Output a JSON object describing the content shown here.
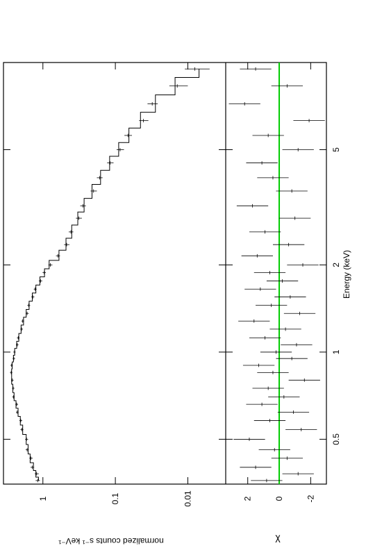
{
  "chart_data": [
    {
      "type": "errorbar",
      "ylabel": "normalized counts s⁻¹ keV⁻¹",
      "xlog": true,
      "ylog": true,
      "xlim": [
        0.35,
        10
      ],
      "xticks": [
        0.5,
        1,
        2,
        5
      ],
      "ylim": [
        0.003,
        3.5
      ],
      "yticks": [
        1,
        0.1,
        0.01
      ],
      "color": "#000000",
      "model_color": "#000000",
      "x": [
        0.36,
        0.38,
        0.4,
        0.43,
        0.46,
        0.5,
        0.54,
        0.58,
        0.62,
        0.66,
        0.7,
        0.75,
        0.8,
        0.85,
        0.9,
        0.95,
        1.0,
        1.06,
        1.12,
        1.2,
        1.28,
        1.36,
        1.45,
        1.55,
        1.65,
        1.76,
        1.88,
        2.0,
        2.15,
        2.35,
        2.6,
        2.9,
        3.2,
        3.6,
        4.0,
        4.5,
        5.0,
        5.6,
        6.3,
        7.2,
        8.3,
        9.5
      ],
      "values": [
        1.18,
        1.22,
        1.4,
        1.46,
        1.65,
        1.68,
        1.95,
        2.02,
        2.26,
        2.3,
        2.55,
        2.57,
        2.64,
        2.74,
        2.7,
        2.52,
        2.47,
        2.26,
        2.19,
        1.97,
        1.9,
        1.65,
        1.57,
        1.38,
        1.28,
        1.08,
        0.96,
        0.79,
        0.62,
        0.47,
        0.41,
        0.32,
        0.28,
        0.2,
        0.165,
        0.118,
        0.086,
        0.067,
        0.041,
        0.031,
        0.014,
        0.008
      ],
      "errors": [
        0.08,
        0.08,
        0.08,
        0.08,
        0.08,
        0.08,
        0.09,
        0.09,
        0.09,
        0.1,
        0.1,
        0.1,
        0.1,
        0.1,
        0.1,
        0.1,
        0.09,
        0.09,
        0.09,
        0.08,
        0.08,
        0.08,
        0.07,
        0.07,
        0.06,
        0.06,
        0.05,
        0.05,
        0.04,
        0.04,
        0.03,
        0.03,
        0.025,
        0.02,
        0.015,
        0.012,
        0.01,
        0.008,
        0.006,
        0.005,
        0.004,
        0.003
      ],
      "model": [
        1.15,
        1.25,
        1.35,
        1.5,
        1.6,
        1.7,
        1.9,
        2.05,
        2.2,
        2.35,
        2.5,
        2.6,
        2.7,
        2.7,
        2.65,
        2.55,
        2.45,
        2.3,
        2.15,
        2.0,
        1.85,
        1.7,
        1.55,
        1.4,
        1.25,
        1.1,
        0.95,
        0.82,
        0.6,
        0.48,
        0.4,
        0.33,
        0.27,
        0.21,
        0.16,
        0.12,
        0.09,
        0.065,
        0.045,
        0.028,
        0.015,
        0.007
      ]
    },
    {
      "type": "residual",
      "ylabel": "χ",
      "xlabel": "Energy (keV)",
      "xlog": true,
      "xlim": [
        0.35,
        10
      ],
      "xticks": [
        0.5,
        1,
        2,
        5
      ],
      "ylim": [
        -3,
        3.4
      ],
      "yticks": [
        2,
        0,
        -2
      ],
      "color": "#000000",
      "zero_line_color": "#00cc00",
      "x": [
        0.36,
        0.38,
        0.4,
        0.43,
        0.46,
        0.5,
        0.54,
        0.58,
        0.62,
        0.66,
        0.7,
        0.75,
        0.8,
        0.85,
        0.9,
        0.95,
        1.0,
        1.06,
        1.12,
        1.2,
        1.28,
        1.36,
        1.45,
        1.55,
        1.65,
        1.76,
        1.88,
        2.0,
        2.15,
        2.35,
        2.6,
        2.9,
        3.2,
        3.6,
        4.0,
        4.5,
        5.0,
        5.6,
        6.3,
        7.2,
        8.3,
        9.5
      ],
      "values": [
        0.8,
        -1.2,
        1.5,
        -0.5,
        0.3,
        1.9,
        -1.4,
        0.6,
        -0.9,
        1.1,
        -0.3,
        0.7,
        -1.6,
        0.4,
        1.3,
        -0.8,
        0.2,
        -1.1,
        0.9,
        -0.4,
        1.6,
        -1.3,
        0.5,
        -0.7,
        1.2,
        -0.2,
        0.6,
        -1.5,
        1.4,
        -0.6,
        0.9,
        -1.0,
        1.7,
        -0.8,
        0.4,
        1.1,
        -1.2,
        0.7,
        -1.9,
        2.2,
        -0.5,
        1.5
      ],
      "errors": [
        1,
        1,
        1,
        1,
        1,
        1,
        1,
        1,
        1,
        1,
        1,
        1,
        1,
        1,
        1,
        1,
        1,
        1,
        1,
        1,
        1,
        1,
        1,
        1,
        1,
        1,
        1,
        1,
        1,
        1,
        1,
        1,
        1,
        1,
        1,
        1,
        1,
        1,
        1,
        1,
        1,
        1
      ]
    }
  ]
}
